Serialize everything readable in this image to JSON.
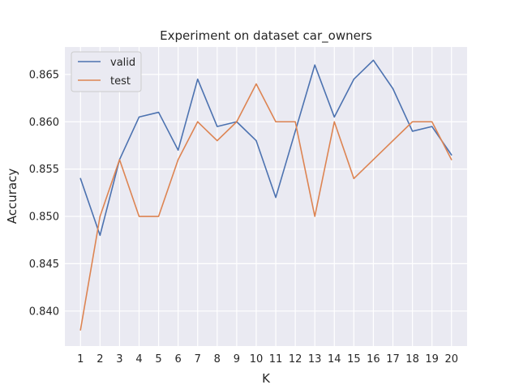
{
  "chart_data": {
    "type": "line",
    "title": "Experiment on dataset car_owners",
    "xlabel": "K",
    "ylabel": "Accuracy",
    "x": [
      1,
      2,
      3,
      4,
      5,
      6,
      7,
      8,
      9,
      10,
      11,
      12,
      13,
      14,
      15,
      16,
      17,
      18,
      19,
      20
    ],
    "x_ticks": [
      "1",
      "2",
      "3",
      "4",
      "5",
      "6",
      "7",
      "8",
      "9",
      "10",
      "11",
      "12",
      "13",
      "14",
      "15",
      "16",
      "17",
      "18",
      "19",
      "20"
    ],
    "y_ticks": [
      "0.840",
      "0.845",
      "0.850",
      "0.855",
      "0.860",
      "0.865"
    ],
    "y_tick_values": [
      0.84,
      0.845,
      0.85,
      0.855,
      0.86,
      0.865
    ],
    "xlim": [
      0.2,
      20.8
    ],
    "ylim": [
      0.8363,
      0.8679
    ],
    "grid": true,
    "legend_position": "top-left",
    "series": [
      {
        "name": "valid",
        "color": "#4c72b0",
        "values": [
          0.854,
          0.848,
          0.856,
          0.8605,
          0.861,
          0.857,
          0.8645,
          0.8595,
          0.86,
          0.858,
          0.852,
          0.859,
          0.866,
          0.8605,
          0.8645,
          0.8665,
          0.8635,
          0.859,
          0.8595,
          0.8565
        ]
      },
      {
        "name": "test",
        "color": "#dd8452",
        "values": [
          0.838,
          0.85,
          0.856,
          0.85,
          0.85,
          0.856,
          0.86,
          0.858,
          0.86,
          0.864,
          0.86,
          0.86,
          0.85,
          0.86,
          0.854,
          0.856,
          0.858,
          0.86,
          0.86,
          0.856
        ]
      }
    ]
  }
}
